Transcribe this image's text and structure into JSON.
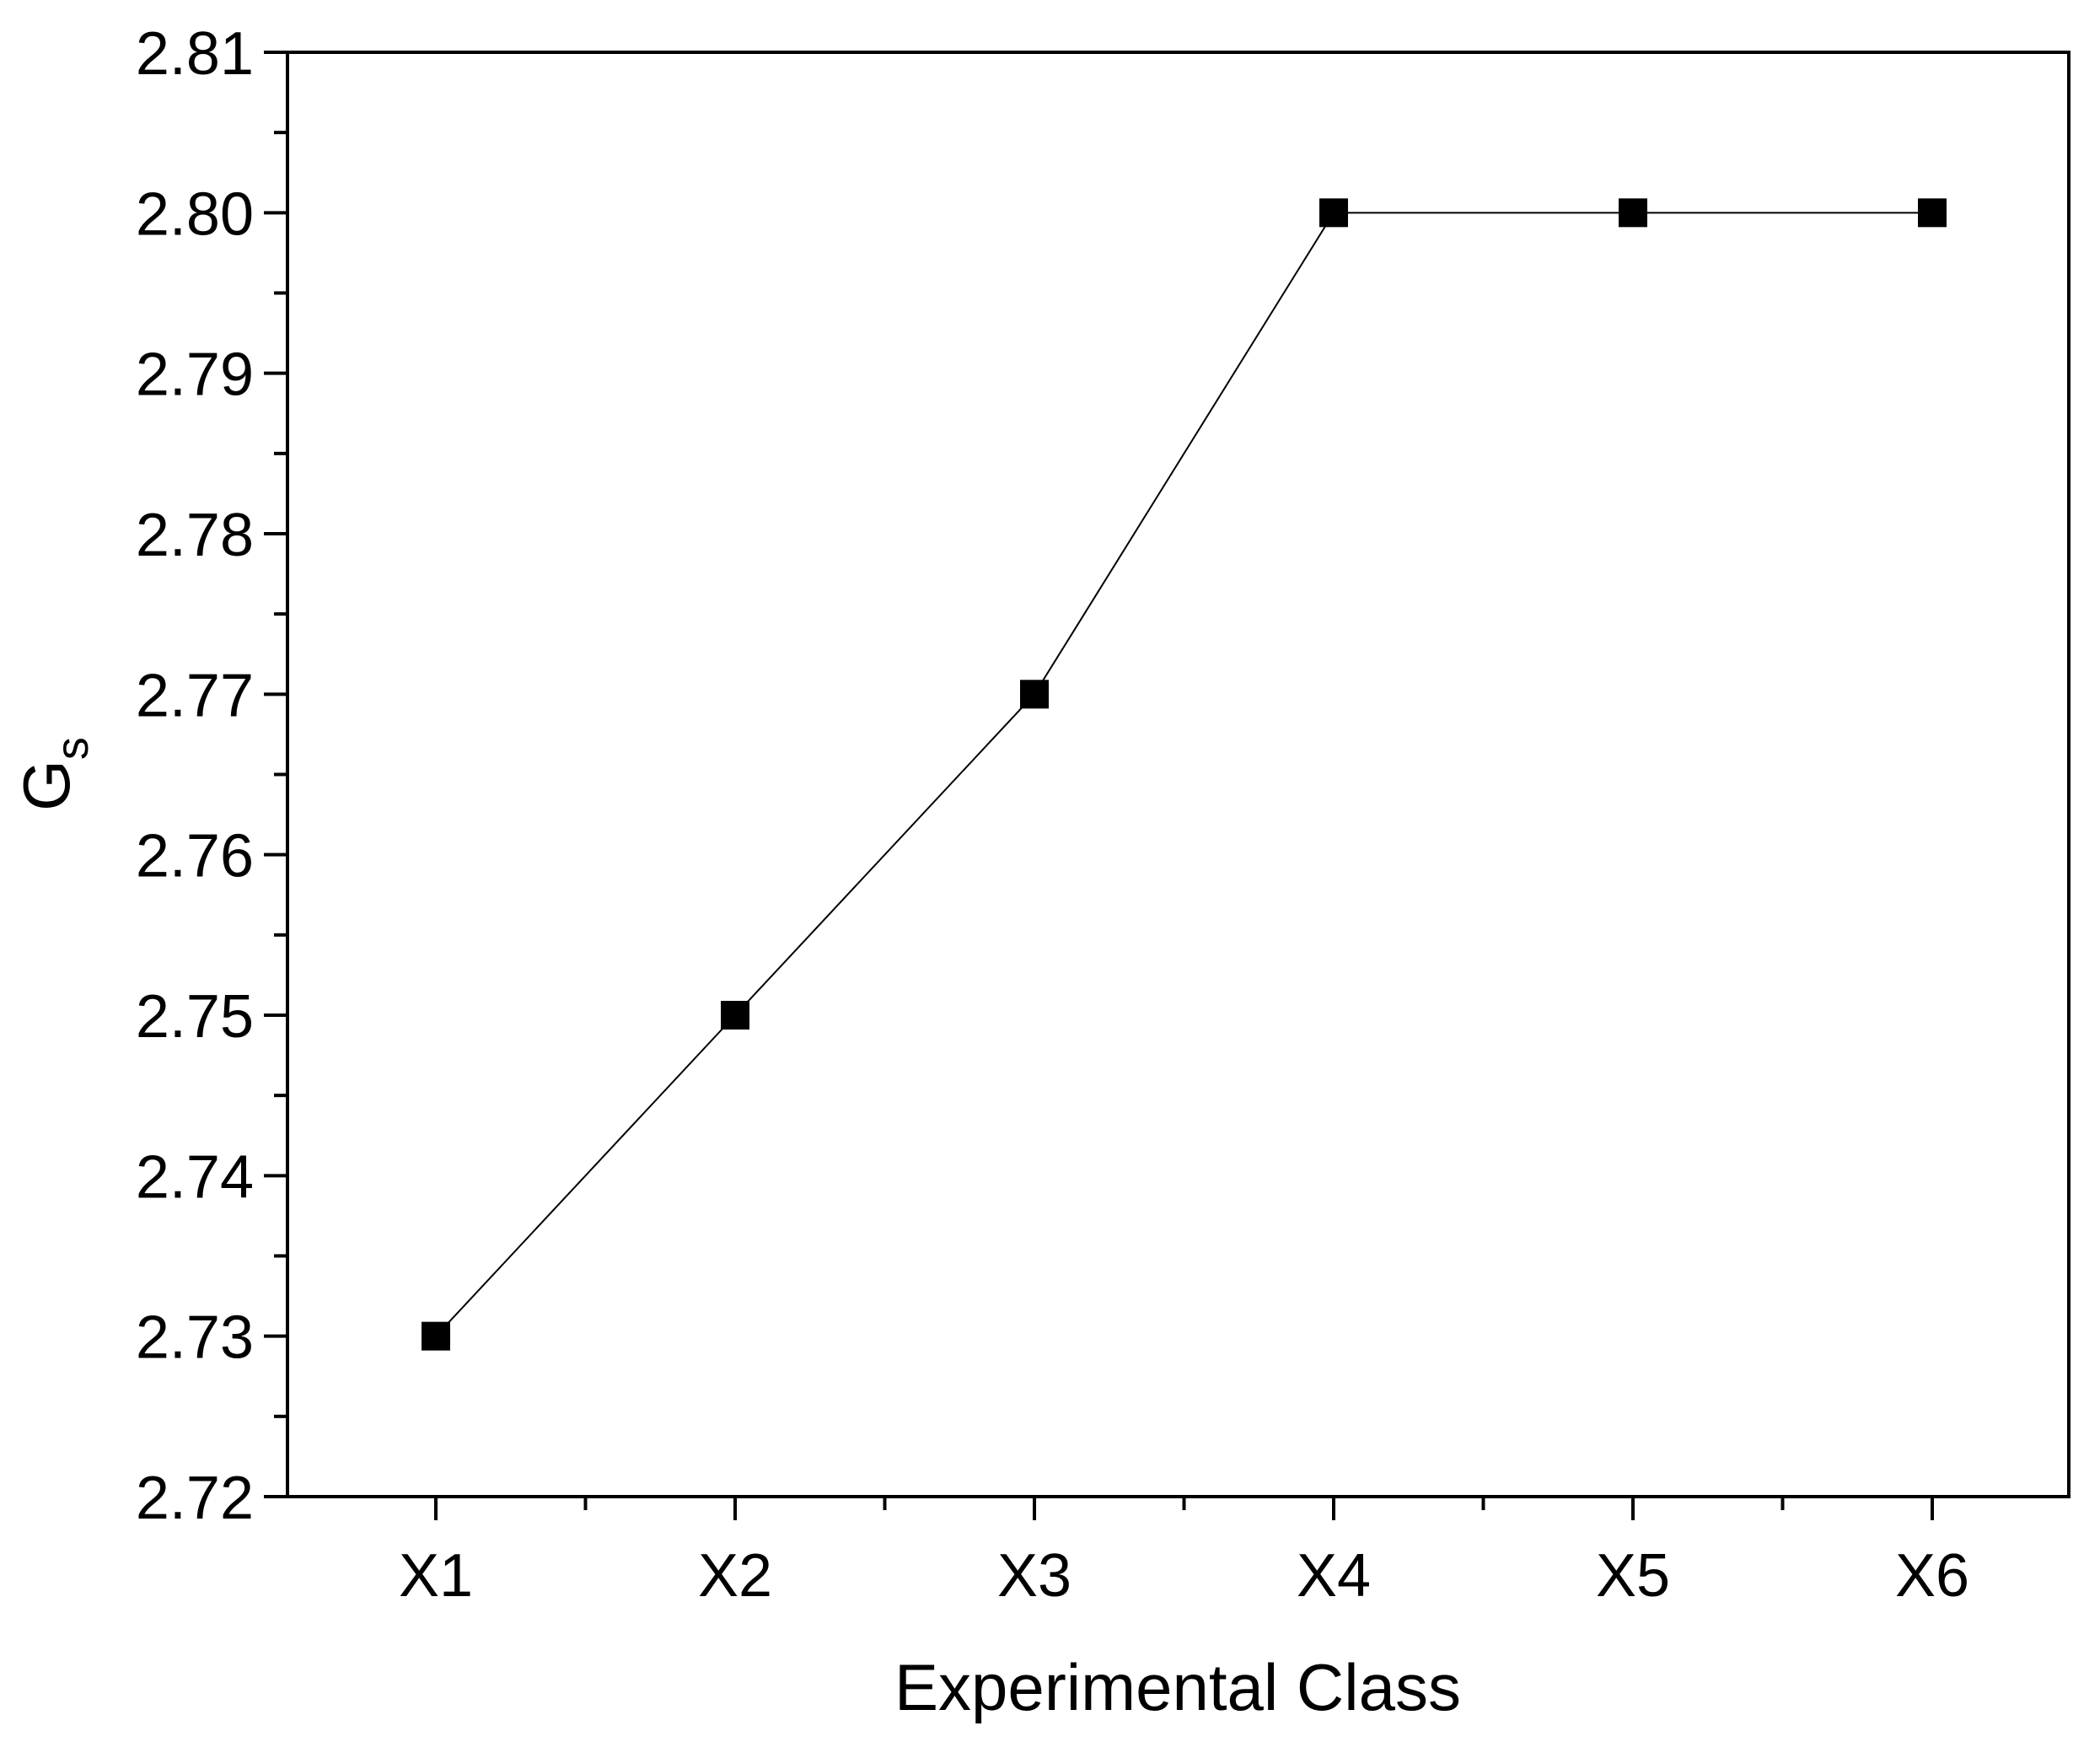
{
  "chart_data": {
    "type": "line",
    "title": "",
    "xlabel": "Experimental Class",
    "ylabel": "G",
    "ylabel_subscript": "s",
    "categories": [
      "X1",
      "X2",
      "X3",
      "X4",
      "X5",
      "X6"
    ],
    "series": [
      {
        "values": [
          2.73,
          2.75,
          2.77,
          2.8,
          2.8,
          2.8
        ],
        "marker": "square",
        "color": "#000000"
      }
    ],
    "ylim": [
      2.72,
      2.81
    ],
    "yticks": [
      "2.72",
      "2.73",
      "2.74",
      "2.75",
      "2.76",
      "2.77",
      "2.78",
      "2.79",
      "2.80",
      "2.81"
    ],
    "grid": false,
    "legend": "none"
  }
}
